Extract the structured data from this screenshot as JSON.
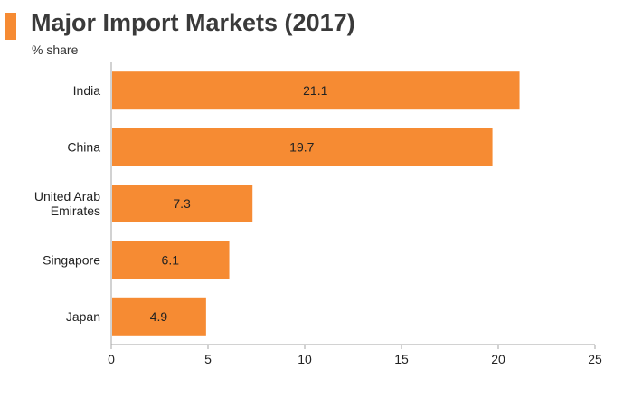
{
  "header": {
    "title": "Major Import Markets (2017)",
    "subtitle": "% share"
  },
  "colors": {
    "accent": "#f68b33",
    "bar": "#f68b33",
    "axis": "#a6a6a6",
    "text": "#222222"
  },
  "chart_data": {
    "type": "bar",
    "orientation": "horizontal",
    "title": "Major Import Markets (2017)",
    "subtitle": "% share",
    "categories": [
      "India",
      "China",
      "United Arab Emirates",
      "Singapore",
      "Japan"
    ],
    "category_lines": [
      [
        "India"
      ],
      [
        "China"
      ],
      [
        "United Arab",
        "Emirates"
      ],
      [
        "Singapore"
      ],
      [
        "Japan"
      ]
    ],
    "values": [
      21.1,
      19.7,
      7.3,
      6.1,
      4.9
    ],
    "xlim": [
      0,
      25
    ],
    "xticks": [
      0,
      5,
      10,
      15,
      20,
      25
    ],
    "xlabel": "",
    "ylabel": "",
    "grid": false,
    "data_labels": true
  }
}
